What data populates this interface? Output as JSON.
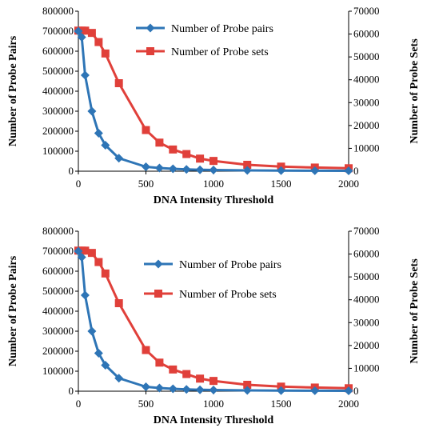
{
  "chart_data": [
    {
      "type": "line",
      "xlabel": "DNA Intensity Threshold",
      "ylabel": "Number of Probe Pairs",
      "y2label": "Number of Probe Sets",
      "xlim": [
        0,
        2000
      ],
      "ylim": [
        0,
        800000
      ],
      "y2lim": [
        0,
        70000
      ],
      "xticks": [
        "0",
        "500",
        "1000",
        "1500",
        "2000"
      ],
      "yticks": [
        "0",
        "100000",
        "200000",
        "300000",
        "400000",
        "500000",
        "600000",
        "700000",
        "800000"
      ],
      "y2ticks": [
        "0",
        "10000",
        "20000",
        "30000",
        "40000",
        "50000",
        "60000",
        "70000"
      ],
      "grid": false,
      "legend_position": "top-right",
      "series": [
        {
          "name": "Number of Probe pairs",
          "axis": "left",
          "color": "#2E75B6",
          "marker": "diamond",
          "x": [
            0,
            25,
            50,
            100,
            150,
            200,
            300,
            500,
            600,
            700,
            800,
            900,
            1000,
            1250,
            1500,
            1750,
            2000
          ],
          "y": [
            700000,
            670000,
            480000,
            300000,
            190000,
            130000,
            65000,
            22000,
            16000,
            12000,
            9000,
            7000,
            6000,
            4000,
            3000,
            2500,
            2000
          ]
        },
        {
          "name": "Number of Probe sets",
          "axis": "right",
          "color": "#E0403A",
          "marker": "square",
          "x": [
            0,
            25,
            50,
            100,
            150,
            200,
            300,
            500,
            600,
            700,
            800,
            900,
            1000,
            1250,
            1500,
            1750,
            2000
          ],
          "y": [
            61500,
            61500,
            61500,
            60500,
            56500,
            51500,
            38500,
            18000,
            12500,
            9500,
            7500,
            5500,
            4500,
            2800,
            2000,
            1600,
            1300
          ]
        }
      ]
    },
    {
      "type": "line",
      "xlabel": "DNA Intensity Threshold",
      "ylabel": "Number of Probe Pairs",
      "y2label": "Number of Probe Sets",
      "xlim": [
        0,
        2000
      ],
      "ylim": [
        0,
        800000
      ],
      "y2lim": [
        0,
        70000
      ],
      "xticks": [
        "0",
        "500",
        "1000",
        "1500",
        "2000"
      ],
      "yticks": [
        "0",
        "100000",
        "200000",
        "300000",
        "400000",
        "500000",
        "600000",
        "700000",
        "800000"
      ],
      "y2ticks": [
        "0",
        "10000",
        "20000",
        "30000",
        "40000",
        "50000",
        "60000",
        "70000"
      ],
      "grid": false,
      "legend_position": "top-right",
      "series": [
        {
          "name": "Number of Probe pairs",
          "axis": "left",
          "color": "#2E75B6",
          "marker": "diamond",
          "x": [
            0,
            25,
            50,
            100,
            150,
            200,
            300,
            500,
            600,
            700,
            800,
            900,
            1000,
            1250,
            1500,
            1750,
            2000
          ],
          "y": [
            700000,
            670000,
            480000,
            300000,
            190000,
            130000,
            65000,
            22000,
            16000,
            12000,
            9000,
            7000,
            6000,
            4000,
            3000,
            2500,
            2000
          ]
        },
        {
          "name": "Number of Probe sets",
          "axis": "right",
          "color": "#E0403A",
          "marker": "square",
          "x": [
            0,
            25,
            50,
            100,
            150,
            200,
            300,
            500,
            600,
            700,
            800,
            900,
            1000,
            1250,
            1500,
            1750,
            2000
          ],
          "y": [
            61500,
            61500,
            61500,
            60500,
            56500,
            51500,
            38500,
            18000,
            12500,
            9500,
            7500,
            5500,
            4500,
            2800,
            2000,
            1600,
            1300
          ]
        }
      ]
    }
  ]
}
